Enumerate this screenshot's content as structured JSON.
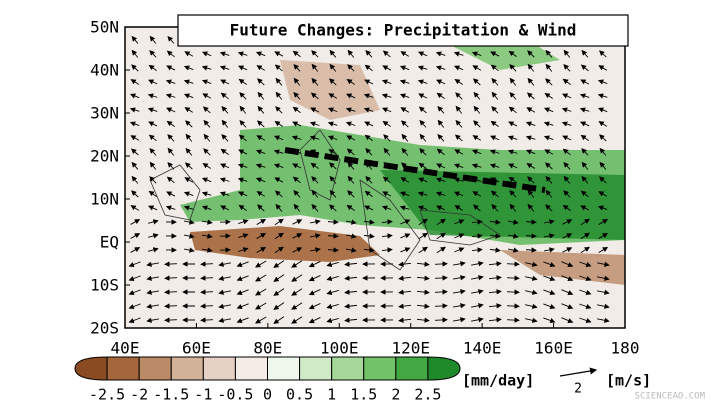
{
  "map": {
    "title": "Future Changes: Precipitation & Wind",
    "lat_labels": [
      "50N",
      "40N",
      "30N",
      "20N",
      "10N",
      "EQ",
      "10S",
      "20S"
    ],
    "lon_labels": [
      "40E",
      "60E",
      "80E",
      "100E",
      "120E",
      "140E",
      "160E",
      "180"
    ]
  },
  "colorbar": {
    "labels": [
      "-2.5",
      "-2",
      "-1.5",
      "-1",
      "-0.5",
      "0",
      "0.5",
      "1",
      "1.5",
      "2",
      "2.5"
    ],
    "colors": [
      "#8a4b22",
      "#a4663a",
      "#bb8a66",
      "#d3b29a",
      "#e6d2c4",
      "#f4ece7",
      "#eef7ea",
      "#cfeac6",
      "#a6d89a",
      "#72c267",
      "#43a843",
      "#1f8a2a"
    ],
    "units": "[mm/day]"
  },
  "vector_key": {
    "value": "2",
    "units": "[m/s]"
  },
  "watermark": "SCIENCEAO.COM"
}
